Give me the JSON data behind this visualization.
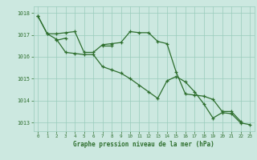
{
  "bg_color": "#cce8e0",
  "grid_color": "#99ccbb",
  "line_color": "#2d6e2d",
  "xlabel": "Graphe pression niveau de la mer (hPa)",
  "xlabel_color": "#2d6e2d",
  "tick_color": "#2d6e2d",
  "xlim": [
    -0.5,
    23.5
  ],
  "ylim": [
    1012.6,
    1018.3
  ],
  "yticks": [
    1013,
    1014,
    1015,
    1016,
    1017,
    1018
  ],
  "xticks": [
    0,
    1,
    2,
    3,
    4,
    5,
    6,
    7,
    8,
    9,
    10,
    11,
    12,
    13,
    14,
    15,
    16,
    17,
    18,
    19,
    20,
    21,
    22,
    23
  ],
  "series1_x": [
    0,
    1,
    2,
    3,
    4,
    5,
    6,
    7,
    8,
    9,
    10,
    11,
    12,
    13,
    14,
    15,
    16,
    17,
    18,
    19,
    20,
    21,
    22
  ],
  "series1_y": [
    1017.85,
    1017.05,
    1017.05,
    1017.1,
    1017.15,
    1016.2,
    1016.2,
    1016.55,
    1016.6,
    1016.65,
    1017.15,
    1017.1,
    1017.1,
    1016.7,
    1016.6,
    1015.3,
    1014.3,
    1014.25,
    1014.2,
    1014.05,
    1013.5,
    1013.5,
    1013.05
  ],
  "series2_x": [
    2,
    3,
    7,
    8
  ],
  "series2_y": [
    1016.75,
    1016.85,
    1016.5,
    1016.5
  ],
  "series3_x": [
    0,
    1,
    2,
    3,
    4,
    5,
    6,
    7,
    8,
    9,
    10,
    11,
    12,
    13,
    14,
    15,
    16,
    17,
    18,
    19,
    20,
    21,
    22,
    23
  ],
  "series3_y": [
    1017.85,
    1017.05,
    1016.8,
    1016.2,
    1016.15,
    1016.1,
    1016.1,
    1015.55,
    1015.4,
    1015.25,
    1015.0,
    1014.7,
    1014.4,
    1014.1,
    1014.9,
    1015.1,
    1014.85,
    1014.4,
    1013.85,
    1013.2,
    1013.45,
    1013.4,
    1012.98,
    1012.9
  ]
}
